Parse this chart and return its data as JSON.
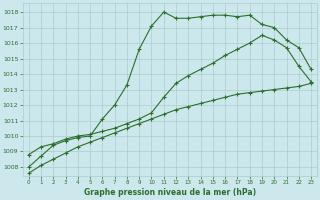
{
  "title": "Graphe pression niveau de la mer (hPa)",
  "background_color": "#cce8ec",
  "grid_color": "#aacccc",
  "line_color": "#2d6e2d",
  "x_ticks": [
    0,
    1,
    2,
    3,
    4,
    5,
    6,
    7,
    8,
    9,
    10,
    11,
    12,
    13,
    14,
    15,
    16,
    17,
    18,
    19,
    20,
    21,
    22,
    23
  ],
  "y_ticks": [
    1008,
    1009,
    1010,
    1011,
    1012,
    1013,
    1014,
    1015,
    1016,
    1017,
    1018
  ],
  "ylim": [
    1007.4,
    1018.6
  ],
  "xlim": [
    -0.5,
    23.5
  ],
  "line1_y": [
    1007.6,
    1008.1,
    1008.5,
    1008.9,
    1009.3,
    1009.6,
    1009.9,
    1010.2,
    1010.5,
    1010.8,
    1011.1,
    1011.4,
    1011.7,
    1011.9,
    1012.1,
    1012.3,
    1012.5,
    1012.7,
    1012.8,
    1012.9,
    1013.0,
    1013.1,
    1013.2,
    1013.4
  ],
  "line2_y": [
    1008.8,
    1009.3,
    1009.5,
    1009.8,
    1010.0,
    1010.1,
    1010.3,
    1010.5,
    1010.8,
    1011.1,
    1011.5,
    1012.5,
    1013.4,
    1013.9,
    1014.3,
    1014.7,
    1015.2,
    1015.6,
    1016.0,
    1016.5,
    1016.2,
    1015.7,
    1014.5,
    1013.5
  ],
  "line3_y": [
    1008.0,
    1008.7,
    1009.4,
    1009.7,
    1009.9,
    1010.0,
    1011.1,
    1012.0,
    1013.3,
    1015.6,
    1017.1,
    1018.0,
    1017.6,
    1017.6,
    1017.7,
    1017.8,
    1017.8,
    1017.7,
    1017.8,
    1017.2,
    1017.0,
    1016.2,
    1015.7,
    1014.3
  ]
}
